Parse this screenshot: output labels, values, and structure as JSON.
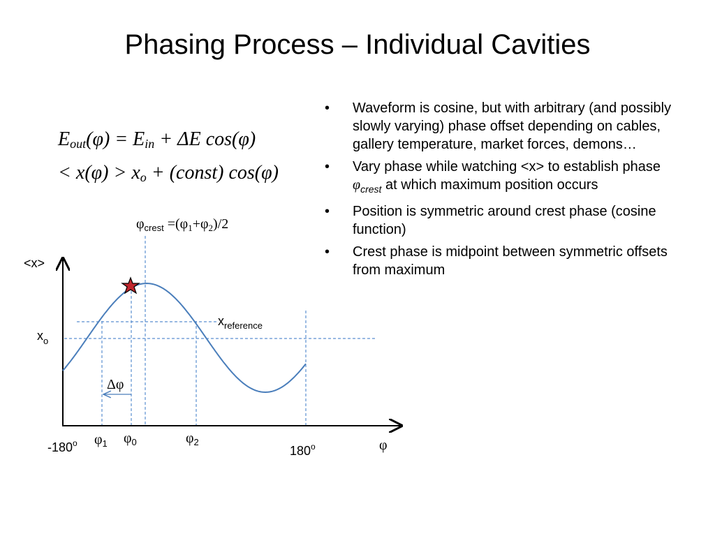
{
  "title": "Phasing Process – Individual Cavities",
  "equations": [
    [
      "E",
      "out",
      "(φ) = E",
      "in",
      " + ΔE cos(φ)"
    ],
    [
      "< x(φ) > x",
      "o",
      " + (const) cos(φ)"
    ]
  ],
  "bullets": [
    [
      "Waveform is cosine, but with arbitrary (and possibly slowly varying) phase offset depending on cables, gallery temperature, market forces, demons…"
    ],
    [
      "Vary phase while watching <x> to establish phase ",
      "φ",
      "crest",
      " at which maximum position occurs"
    ],
    [
      "Position is symmetric around crest phase (cosine function)"
    ],
    [
      "Crest phase is midpoint between symmetric offsets from maximum"
    ]
  ],
  "diagram": {
    "y_axis_label": "<x>",
    "x_axis_label": "φ",
    "x_o": [
      "x",
      "o"
    ],
    "x_reference": [
      "x",
      "reference"
    ],
    "crest_formula": [
      "φ",
      "crest",
      " =(φ",
      "1",
      "+φ",
      "2",
      ")/2"
    ],
    "delta_phi": "Δφ",
    "phi_1": [
      "φ",
      "1"
    ],
    "phi_0": [
      "φ",
      "0"
    ],
    "phi_2": [
      "φ",
      "2"
    ],
    "x_min": [
      "-180",
      "o"
    ],
    "x_max": [
      "180",
      "o"
    ]
  }
}
